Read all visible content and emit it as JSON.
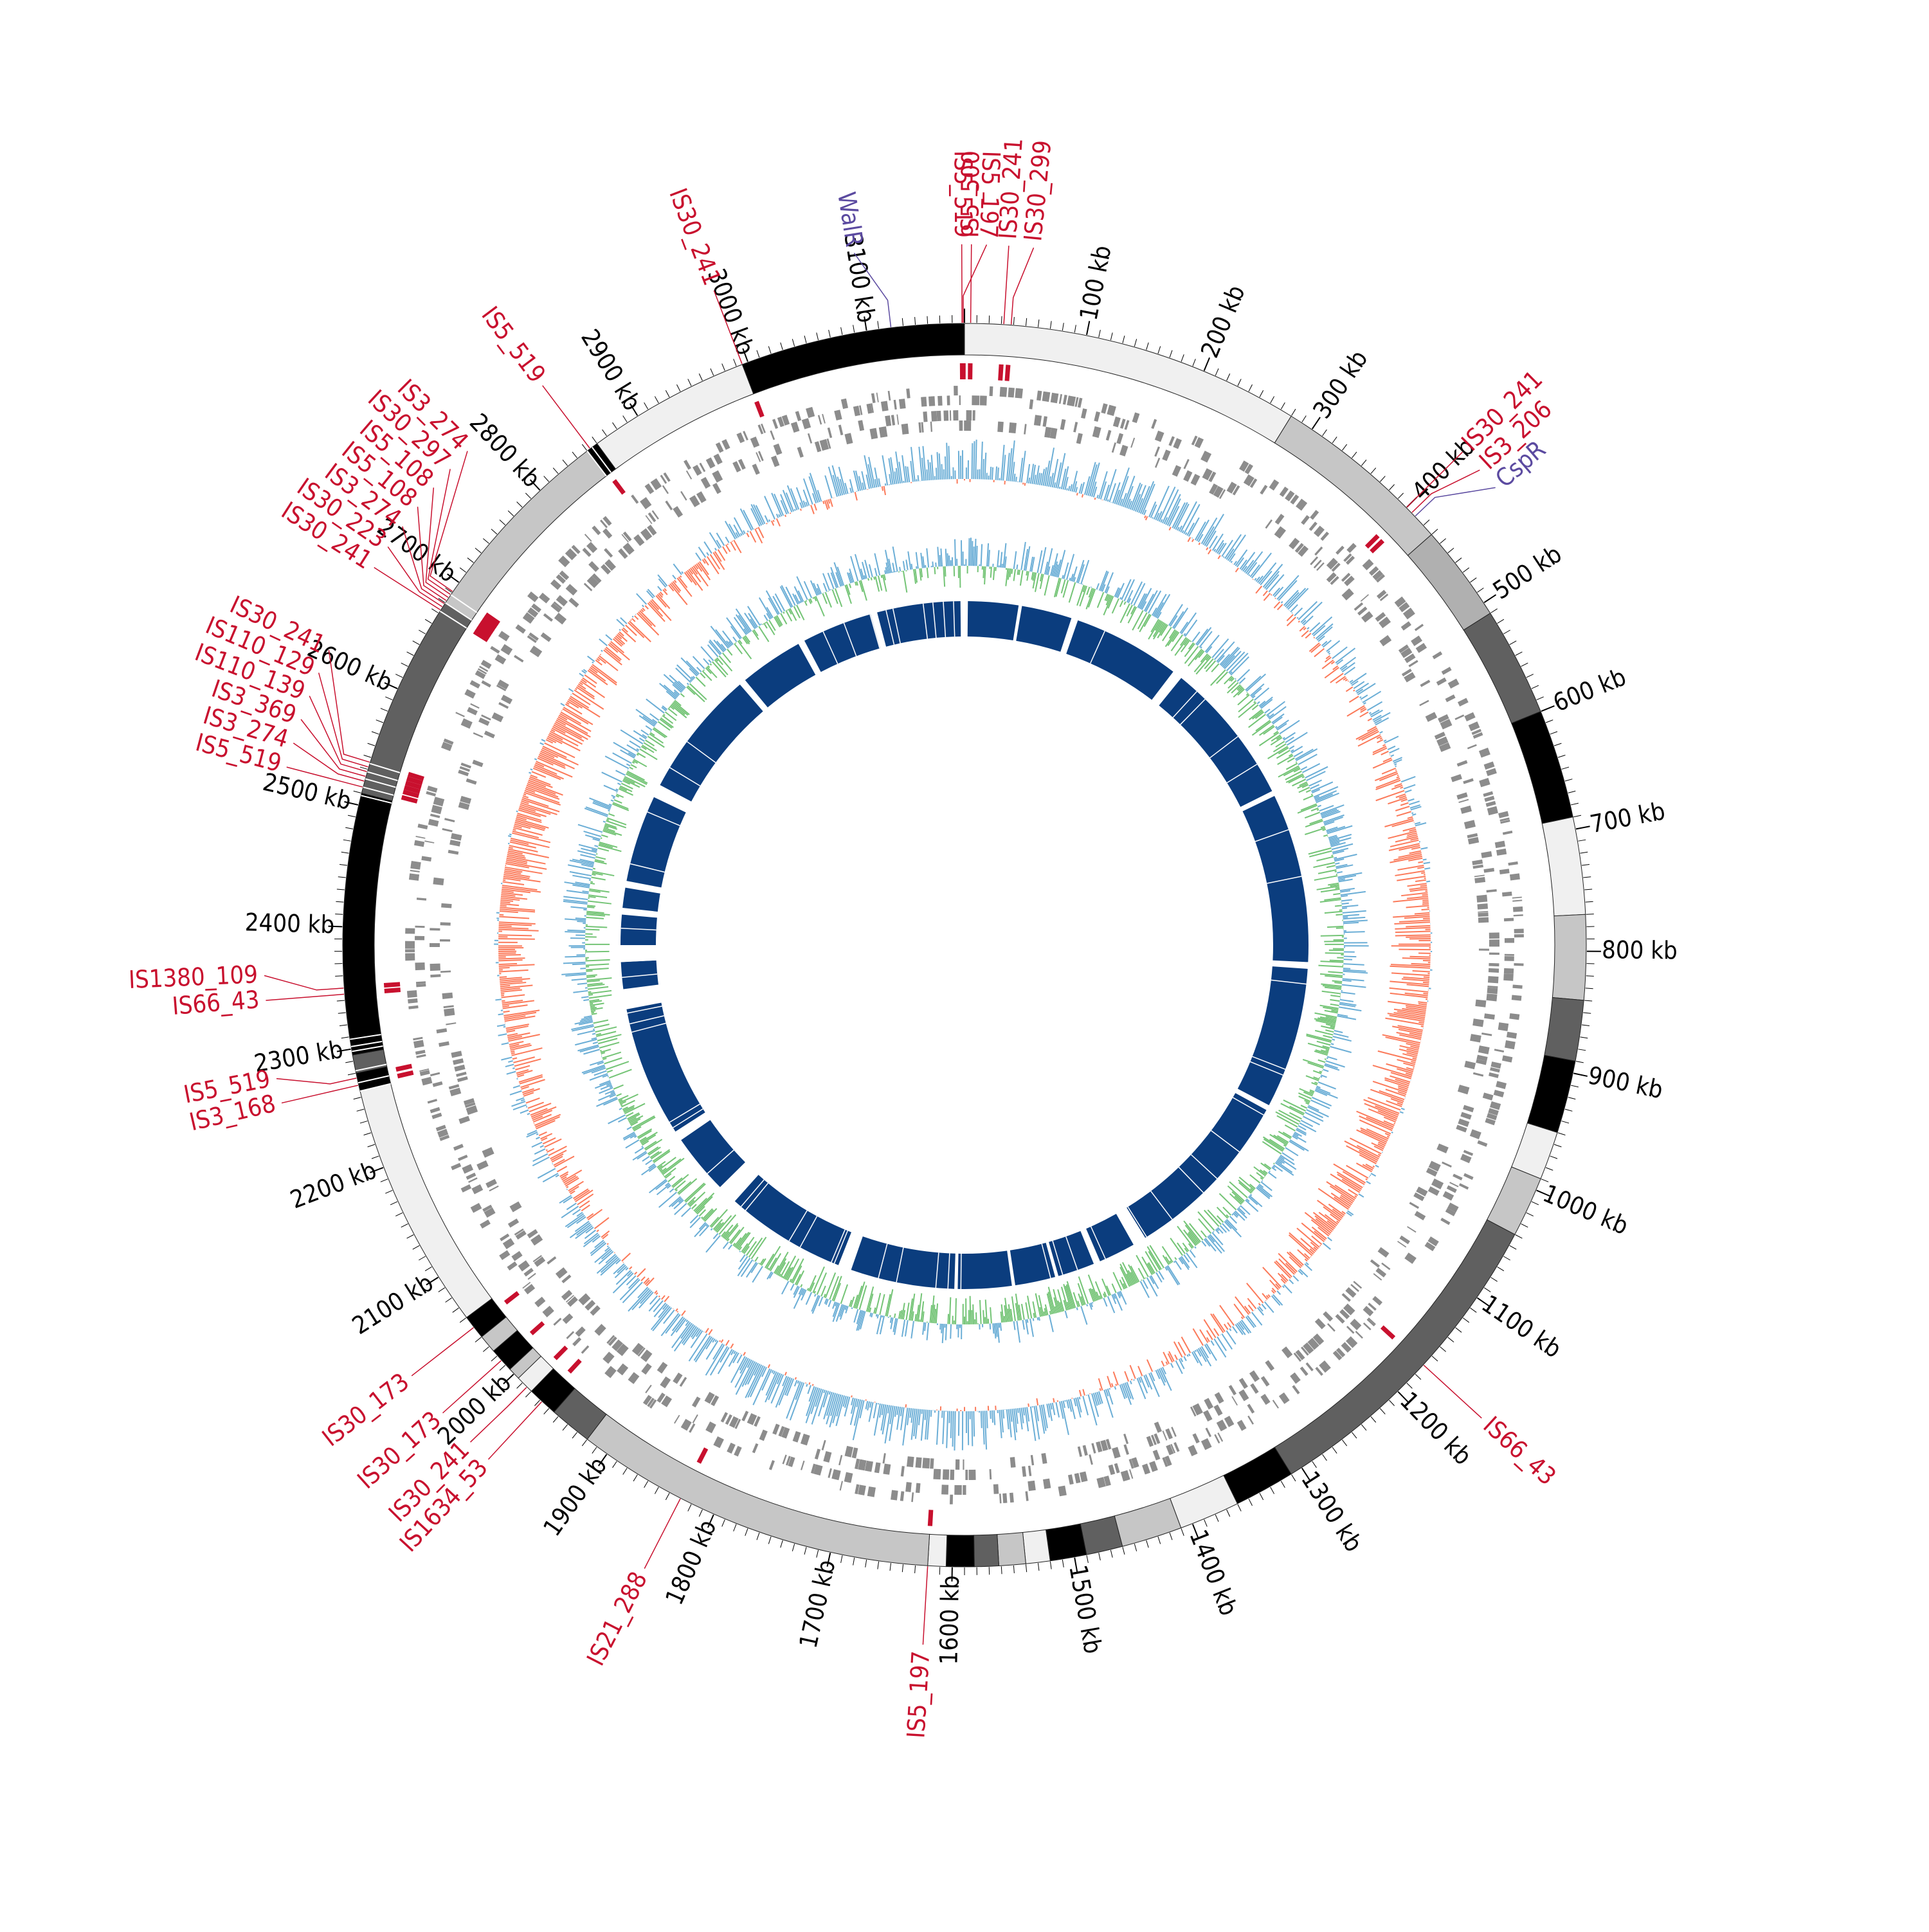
{
  "genome": {
    "length_kb": 3180,
    "tick_labels": [
      "100 kb",
      "200 kb",
      "300 kb",
      "400 kb",
      "500 kb",
      "600 kb",
      "700 kb",
      "800 kb",
      "900 kb",
      "1000 kb",
      "1100 kb",
      "1200 kb",
      "1300 kb",
      "1400 kb",
      "1500 kb",
      "1600 kb",
      "1700 kb",
      "1800 kb",
      "1900 kb",
      "2000 kb",
      "2100 kb",
      "2200 kb",
      "2300 kb",
      "2400 kb",
      "2500 kb",
      "2600 kb",
      "2700 kb",
      "2800 kb",
      "2900 kb",
      "3000 kb",
      "3100 kb"
    ]
  },
  "colors": {
    "is_element": "#c8102e",
    "gene_label": "#5b4aa0",
    "tick": "#000000",
    "gene_track": "#8c8c8c",
    "gc_positive": "#6baed6",
    "gc_negative": "#fb7a5a",
    "skew_positive": "#6baed6",
    "skew_negative": "#74c476",
    "homology": "#0b3d7e"
  },
  "segments": [
    {
      "start": 0,
      "end": 280,
      "shade": "#f0f0f0"
    },
    {
      "start": 280,
      "end": 430,
      "shade": "#c6c6c6"
    },
    {
      "start": 430,
      "end": 510,
      "shade": "#b0b0b0"
    },
    {
      "start": 510,
      "end": 600,
      "shade": "#606060"
    },
    {
      "start": 600,
      "end": 690,
      "shade": "#000000"
    },
    {
      "start": 690,
      "end": 770,
      "shade": "#f0f0f0"
    },
    {
      "start": 770,
      "end": 840,
      "shade": "#c6c6c6"
    },
    {
      "start": 840,
      "end": 890,
      "shade": "#606060"
    },
    {
      "start": 890,
      "end": 950,
      "shade": "#000000"
    },
    {
      "start": 950,
      "end": 990,
      "shade": "#f0f0f0"
    },
    {
      "start": 990,
      "end": 1040,
      "shade": "#c6c6c6"
    },
    {
      "start": 1040,
      "end": 1310,
      "shade": "#606060"
    },
    {
      "start": 1310,
      "end": 1360,
      "shade": "#000000"
    },
    {
      "start": 1360,
      "end": 1410,
      "shade": "#f0f0f0"
    },
    {
      "start": 1410,
      "end": 1460,
      "shade": "#c6c6c6"
    },
    {
      "start": 1460,
      "end": 1490,
      "shade": "#606060"
    },
    {
      "start": 1490,
      "end": 1520,
      "shade": "#000000"
    },
    {
      "start": 1520,
      "end": 1540,
      "shade": "#f0f0f0"
    },
    {
      "start": 1540,
      "end": 1562,
      "shade": "#c6c6c6"
    },
    {
      "start": 1562,
      "end": 1582,
      "shade": "#606060"
    },
    {
      "start": 1582,
      "end": 1605,
      "shade": "#000000"
    },
    {
      "start": 1605,
      "end": 1620,
      "shade": "#f0f0f0"
    },
    {
      "start": 1620,
      "end": 1920,
      "shade": "#c6c6c6"
    },
    {
      "start": 1920,
      "end": 1955,
      "shade": "#606060"
    },
    {
      "start": 1955,
      "end": 1980,
      "shade": "#000000"
    },
    {
      "start": 1980,
      "end": 1995,
      "shade": "#f0f0f0"
    },
    {
      "start": 1995,
      "end": 2005,
      "shade": "#c6c6c6"
    },
    {
      "start": 2005,
      "end": 2025,
      "shade": "#000000"
    },
    {
      "start": 2025,
      "end": 2040,
      "shade": "#c6c6c6"
    },
    {
      "start": 2040,
      "end": 2060,
      "shade": "#000000"
    },
    {
      "start": 2060,
      "end": 2265,
      "shade": "#f0f0f0"
    },
    {
      "start": 2265,
      "end": 2280,
      "shade": "#000000"
    },
    {
      "start": 2280,
      "end": 2295,
      "shade": "#606060"
    },
    {
      "start": 2295,
      "end": 2510,
      "shade": "#000000"
    },
    {
      "start": 2510,
      "end": 2680,
      "shade": "#606060"
    },
    {
      "start": 2680,
      "end": 2850,
      "shade": "#c6c6c6"
    },
    {
      "start": 2850,
      "end": 2860,
      "shade": "#000000"
    },
    {
      "start": 2860,
      "end": 2995,
      "shade": "#f0f0f0"
    },
    {
      "start": 2995,
      "end": 3180,
      "shade": "#000000"
    }
  ],
  "is_labels": [
    {
      "text": "IS5_500",
      "pos": 5
    },
    {
      "text": "IS30_299",
      "pos": 38
    },
    {
      "text": "IS30_241",
      "pos": 32
    },
    {
      "text": "IS30_241",
      "pos": 400
    },
    {
      "text": "IS3_206",
      "pos": 406
    },
    {
      "text": "IS66_43",
      "pos": 1170
    },
    {
      "text": "IS5_197",
      "pos": 1620
    },
    {
      "text": "IS21_288",
      "pos": 1830
    },
    {
      "text": "IS1634_53",
      "pos": 1968
    },
    {
      "text": "IS30_241",
      "pos": 1985
    },
    {
      "text": "IS30_173",
      "pos": 2015
    },
    {
      "text": "IS30_173",
      "pos": 2050
    },
    {
      "text": "IS3_168",
      "pos": 2270
    },
    {
      "text": "IS5_519",
      "pos": 2276
    },
    {
      "text": "IS66_43",
      "pos": 2345
    },
    {
      "text": "IS1380_109",
      "pos": 2350
    },
    {
      "text": "IS5_519",
      "pos": 2515
    },
    {
      "text": "IS3_274",
      "pos": 2520
    },
    {
      "text": "IS3_369",
      "pos": 2524
    },
    {
      "text": "IS110_139",
      "pos": 2528
    },
    {
      "text": "IS110_129",
      "pos": 2532
    },
    {
      "text": "IS30_241",
      "pos": 2536
    },
    {
      "text": "IS30_241",
      "pos": 2673
    },
    {
      "text": "IS30_223",
      "pos": 2676
    },
    {
      "text": "IS3_274",
      "pos": 2679
    },
    {
      "text": "IS5_108",
      "pos": 2682
    },
    {
      "text": "IS5_108",
      "pos": 2685
    },
    {
      "text": "IS30_297",
      "pos": 2688
    },
    {
      "text": "IS3_274",
      "pos": 2691
    },
    {
      "text": "IS5_519",
      "pos": 2853
    },
    {
      "text": "IS30_241",
      "pos": 2995
    },
    {
      "text": "IS5_197",
      "pos": 3179
    },
    {
      "text": "IS5_519",
      "pos": 3178
    }
  ],
  "gene_labels": [
    {
      "text": "WalR",
      "pos": 3120
    },
    {
      "text": "CspR",
      "pos": 410
    }
  ]
}
